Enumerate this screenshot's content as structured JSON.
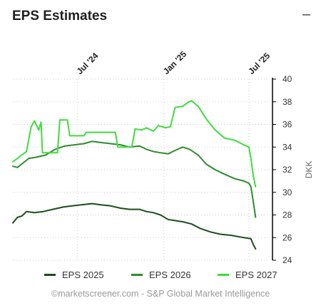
{
  "widget": {
    "title": "EPS Estimates",
    "collapse_glyph": "–",
    "credits": "©marketscreener.com - S&P Global Market Intelligence"
  },
  "chart_data": {
    "type": "line",
    "ylabel": "DKK",
    "ylim": [
      24,
      40
    ],
    "yticks": [
      24,
      26,
      28,
      30,
      32,
      34,
      36,
      38,
      40
    ],
    "xlim": [
      "2024-02-15",
      "2025-08-20"
    ],
    "xticks": [
      {
        "date": "2024-07-01",
        "label": "Jul '24"
      },
      {
        "date": "2025-01-01",
        "label": "Jan '25"
      },
      {
        "date": "2025-07-01",
        "label": "Jul '25"
      }
    ],
    "grid": true,
    "y_axis_side": "right",
    "legend_position": "bottom",
    "series": [
      {
        "name": "EPS 2025",
        "color": "#1b4d1b",
        "points": [
          [
            "2024-02-15",
            27.3
          ],
          [
            "2024-02-25",
            27.8
          ],
          [
            "2024-03-05",
            27.9
          ],
          [
            "2024-03-15",
            28.3
          ],
          [
            "2024-04-01",
            28.2
          ],
          [
            "2024-04-20",
            28.3
          ],
          [
            "2024-05-10",
            28.5
          ],
          [
            "2024-06-01",
            28.7
          ],
          [
            "2024-06-20",
            28.8
          ],
          [
            "2024-07-10",
            28.9
          ],
          [
            "2024-08-01",
            29.0
          ],
          [
            "2024-08-20",
            28.9
          ],
          [
            "2024-09-10",
            28.8
          ],
          [
            "2024-10-01",
            28.6
          ],
          [
            "2024-10-20",
            28.5
          ],
          [
            "2024-11-10",
            28.5
          ],
          [
            "2024-11-25",
            28.3
          ],
          [
            "2024-12-10",
            28.2
          ],
          [
            "2024-12-25",
            28.0
          ],
          [
            "2025-01-10",
            27.6
          ],
          [
            "2025-01-25",
            27.5
          ],
          [
            "2025-02-10",
            27.4
          ],
          [
            "2025-03-01",
            27.2
          ],
          [
            "2025-03-20",
            26.8
          ],
          [
            "2025-04-10",
            26.5
          ],
          [
            "2025-05-01",
            26.3
          ],
          [
            "2025-05-25",
            26.2
          ],
          [
            "2025-06-20",
            26.0
          ],
          [
            "2025-07-05",
            25.9
          ],
          [
            "2025-07-10",
            25.4
          ],
          [
            "2025-07-15",
            25.0
          ]
        ]
      },
      {
        "name": "EPS 2026",
        "color": "#2e8b2e",
        "points": [
          [
            "2024-02-15",
            32.3
          ],
          [
            "2024-02-25",
            32.2
          ],
          [
            "2024-03-05",
            32.5
          ],
          [
            "2024-03-20",
            33.0
          ],
          [
            "2024-04-05",
            33.1
          ],
          [
            "2024-04-25",
            33.3
          ],
          [
            "2024-05-15",
            33.8
          ],
          [
            "2024-06-05",
            34.1
          ],
          [
            "2024-06-25",
            34.2
          ],
          [
            "2024-07-15",
            34.3
          ],
          [
            "2024-08-01",
            34.5
          ],
          [
            "2024-08-20",
            34.4
          ],
          [
            "2024-09-10",
            34.3
          ],
          [
            "2024-10-01",
            34.2
          ],
          [
            "2024-10-20",
            34.0
          ],
          [
            "2024-11-10",
            34.1
          ],
          [
            "2024-11-25",
            33.8
          ],
          [
            "2024-12-10",
            33.6
          ],
          [
            "2024-12-25",
            33.5
          ],
          [
            "2025-01-10",
            33.4
          ],
          [
            "2025-01-25",
            33.7
          ],
          [
            "2025-02-10",
            34.0
          ],
          [
            "2025-02-25",
            33.8
          ],
          [
            "2025-03-15",
            33.3
          ],
          [
            "2025-04-01",
            32.5
          ],
          [
            "2025-04-20",
            32.0
          ],
          [
            "2025-05-10",
            31.6
          ],
          [
            "2025-06-01",
            31.2
          ],
          [
            "2025-06-20",
            31.0
          ],
          [
            "2025-07-01",
            30.8
          ],
          [
            "2025-07-05",
            30.5
          ],
          [
            "2025-07-10",
            29.2
          ],
          [
            "2025-07-15",
            27.8
          ]
        ]
      },
      {
        "name": "EPS 2027",
        "color": "#3ddc3d",
        "points": [
          [
            "2024-02-15",
            32.7
          ],
          [
            "2024-02-25",
            33.0
          ],
          [
            "2024-03-05",
            33.3
          ],
          [
            "2024-03-15",
            33.6
          ],
          [
            "2024-03-25",
            35.8
          ],
          [
            "2024-04-01",
            36.3
          ],
          [
            "2024-04-10",
            35.5
          ],
          [
            "2024-04-15",
            36.2
          ],
          [
            "2024-04-18",
            33.5
          ],
          [
            "2024-05-20",
            33.5
          ],
          [
            "2024-05-25",
            36.4
          ],
          [
            "2024-06-10",
            36.4
          ],
          [
            "2024-06-15",
            35.0
          ],
          [
            "2024-07-15",
            35.0
          ],
          [
            "2024-07-20",
            35.3
          ],
          [
            "2024-09-20",
            35.3
          ],
          [
            "2024-09-25",
            34.0
          ],
          [
            "2024-10-25",
            34.0
          ],
          [
            "2024-11-01",
            35.6
          ],
          [
            "2024-11-15",
            35.5
          ],
          [
            "2024-11-25",
            35.7
          ],
          [
            "2024-12-10",
            35.4
          ],
          [
            "2024-12-20",
            35.9
          ],
          [
            "2025-01-05",
            35.7
          ],
          [
            "2025-01-15",
            35.8
          ],
          [
            "2025-01-25",
            37.5
          ],
          [
            "2025-02-10",
            37.6
          ],
          [
            "2025-02-20",
            37.9
          ],
          [
            "2025-03-01",
            38.1
          ],
          [
            "2025-03-15",
            37.6
          ],
          [
            "2025-04-01",
            36.5
          ],
          [
            "2025-04-20",
            35.5
          ],
          [
            "2025-05-10",
            34.8
          ],
          [
            "2025-06-01",
            34.6
          ],
          [
            "2025-06-20",
            34.2
          ],
          [
            "2025-07-01",
            34.0
          ],
          [
            "2025-07-05",
            33.0
          ],
          [
            "2025-07-10",
            31.5
          ],
          [
            "2025-07-15",
            30.5
          ]
        ]
      }
    ]
  }
}
